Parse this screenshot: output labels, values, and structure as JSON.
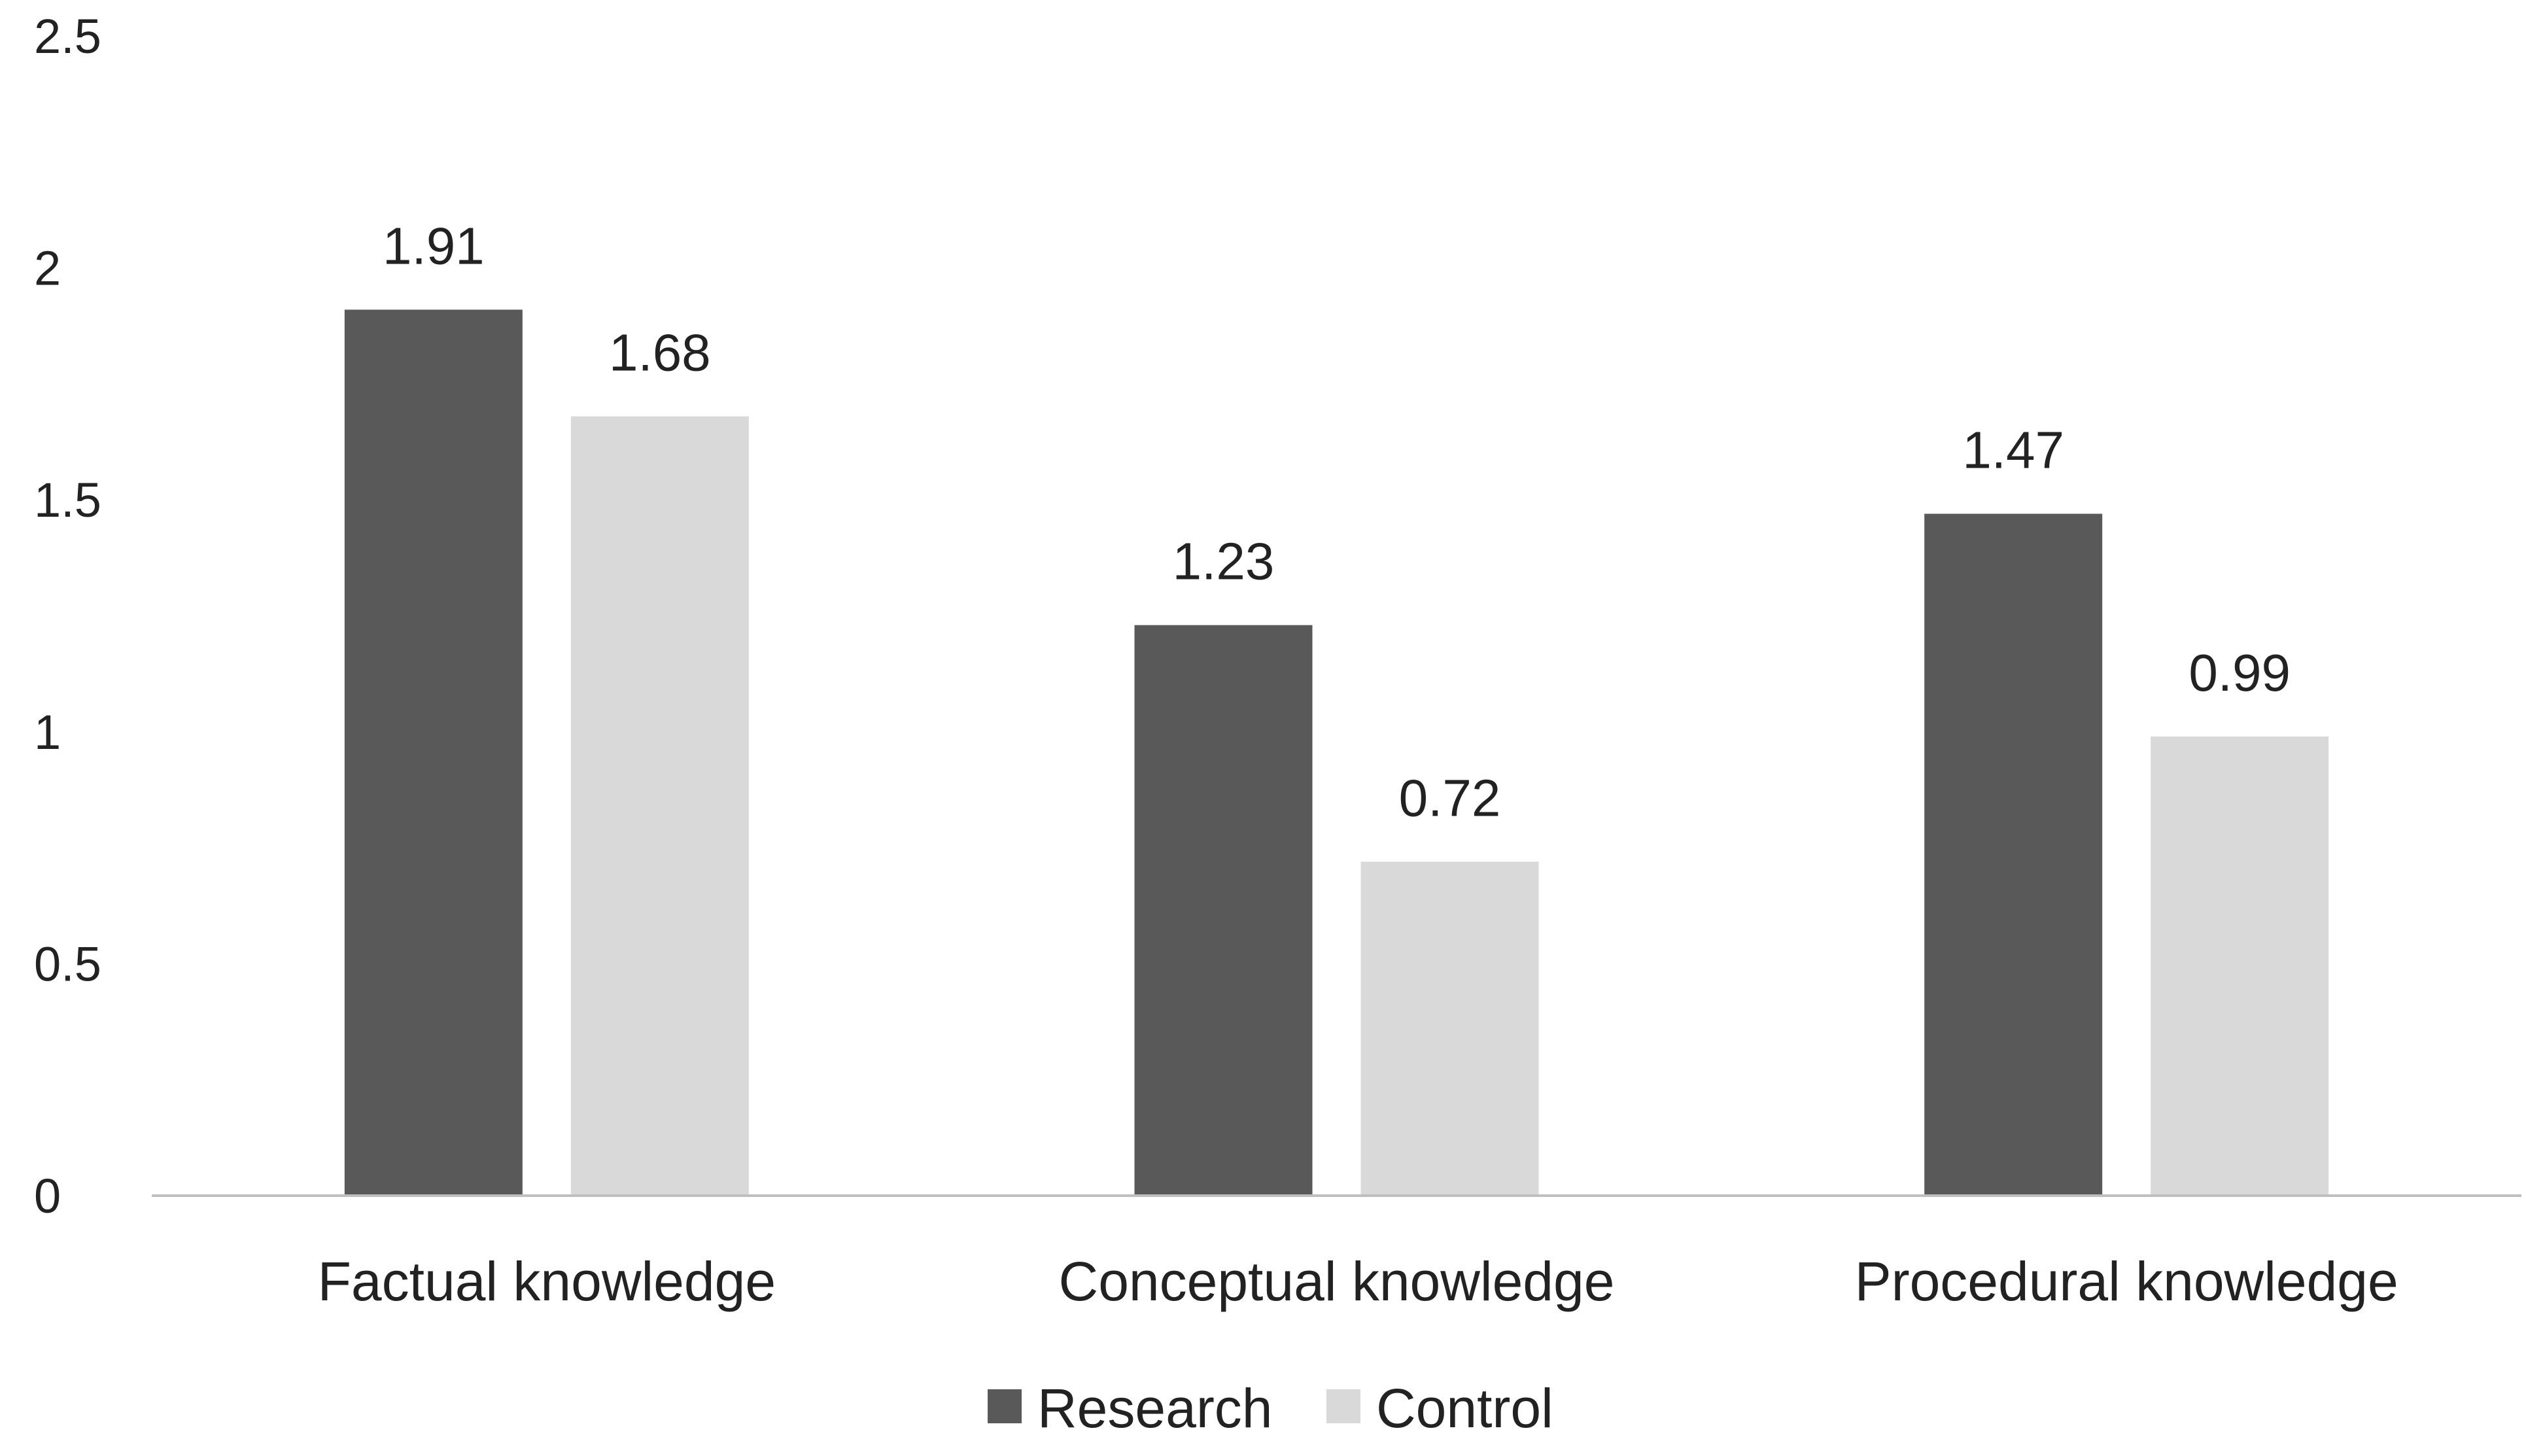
{
  "chart_data": {
    "type": "bar",
    "categories": [
      "Factual knowledge",
      "Conceptual knowledge",
      "Procedural knowledge"
    ],
    "series": [
      {
        "name": "Research",
        "values": [
          1.91,
          1.23,
          1.47
        ],
        "color": "#595959"
      },
      {
        "name": "Control",
        "values": [
          1.68,
          0.72,
          0.99
        ],
        "color": "#d9d9d9"
      }
    ],
    "data_labels": [
      [
        "1.91",
        "1.23",
        "1.47"
      ],
      [
        "1.68",
        "0.72",
        "0.99"
      ]
    ],
    "yticks": [
      "0",
      "0.5",
      "1",
      "1.5",
      "2",
      "2.5"
    ],
    "ylim": [
      0,
      2.5
    ],
    "grid": false,
    "legend": "bottom",
    "axis_color": "#bfbfbf"
  }
}
